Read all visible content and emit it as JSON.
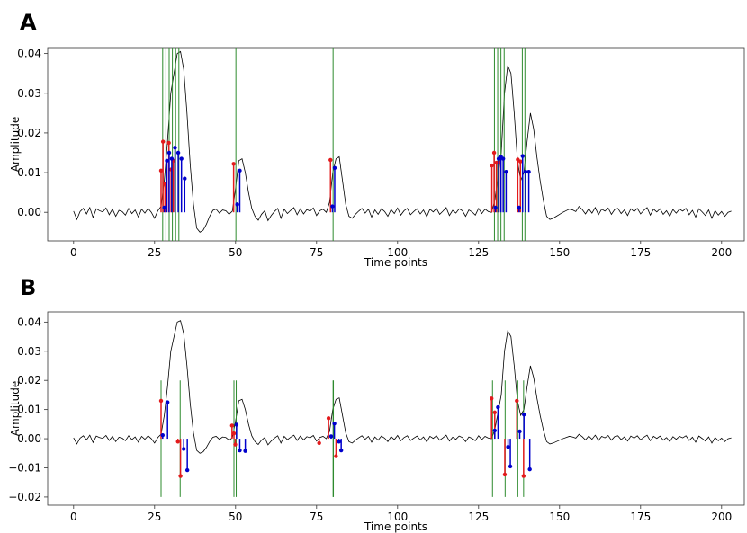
{
  "chart_data": [
    {
      "type": "line",
      "panel_label": "A",
      "xlabel": "Time points",
      "ylabel": "Amplitude",
      "xlim": [
        -8,
        207
      ],
      "ylim": [
        -0.0072,
        0.0415
      ],
      "xticks": [
        0,
        25,
        50,
        75,
        100,
        125,
        150,
        175,
        200
      ],
      "yticks": [
        0.0,
        0.01,
        0.02,
        0.03,
        0.04
      ],
      "ytick_labels": [
        "0.00",
        "0.01",
        "0.02",
        "0.03",
        "0.04"
      ],
      "grid": false,
      "signal_color": "#000000",
      "green_line_color": "#2e8b2e",
      "red_stem_color": "#e31a1c",
      "blue_stem_color": "#0000cc",
      "green_lines": {
        "x": [
          27.5,
          28.5,
          29.5,
          30.5,
          31.5,
          32.5,
          50.1,
          80.1,
          129.9,
          130.9,
          131.9,
          132.9,
          138.5,
          139.3
        ],
        "ymin": -0.0072,
        "ymax": 0.0415
      },
      "red_stems": {
        "x": [
          27.0,
          27.6,
          28.2,
          29.4,
          30.1,
          30.8,
          49.4,
          79.3,
          129.1,
          129.8,
          130.5,
          131.3,
          137.1,
          137.9
        ],
        "y": [
          0.0105,
          0.0178,
          0.0072,
          0.0175,
          0.0108,
          0.013,
          0.0122,
          0.0132,
          0.0118,
          0.015,
          0.0125,
          0.0125,
          0.0133,
          0.0128
        ]
      },
      "blue_stems": {
        "x": [
          28.0,
          28.8,
          29.5,
          30.3,
          31.3,
          32.3,
          33.3,
          34.3,
          50.5,
          51.3,
          79.9,
          80.6,
          130.2,
          131.2,
          131.9,
          132.6,
          133.5,
          137.5,
          138.6,
          139.5,
          140.5
        ],
        "y": [
          0.0012,
          0.013,
          0.015,
          0.0135,
          0.0163,
          0.015,
          0.0135,
          0.0085,
          0.002,
          0.0105,
          0.0015,
          0.0112,
          0.0012,
          0.0135,
          0.014,
          0.0135,
          0.0102,
          0.0012,
          0.0142,
          0.0102,
          0.0102
        ]
      }
    },
    {
      "type": "line",
      "panel_label": "B",
      "xlabel": "Time points",
      "ylabel": "Amplitude",
      "xlim": [
        -8,
        207
      ],
      "ylim": [
        -0.0228,
        0.0435
      ],
      "xticks": [
        0,
        25,
        50,
        75,
        100,
        125,
        150,
        175,
        200
      ],
      "yticks": [
        -0.02,
        -0.01,
        0.0,
        0.01,
        0.02,
        0.03,
        0.04
      ],
      "ytick_labels": [
        "−0.02",
        "−0.01",
        "0.00",
        "0.01",
        "0.02",
        "0.03",
        "0.04"
      ],
      "grid": false,
      "signal_color": "#000000",
      "green_line_color": "#2e8b2e",
      "red_stem_color": "#e31a1c",
      "blue_stem_color": "#0000cc",
      "green_lines": {
        "x": [
          27.0,
          32.9,
          49.5,
          50.2,
          80.1,
          80.2,
          129.3,
          133.2,
          137.1,
          138.9
        ],
        "ymin": -0.02,
        "ymax": 0.02
      },
      "red_stems": {
        "x": [
          27.0,
          32.2,
          33.0,
          48.9,
          49.5,
          49.9,
          75.8,
          78.7,
          81.0,
          129.0,
          130.0,
          133.1,
          136.8,
          138.9
        ],
        "y": [
          0.013,
          -0.001,
          -0.0128,
          0.0045,
          0.0018,
          -0.002,
          -0.0015,
          0.007,
          -0.006,
          0.0138,
          0.009,
          -0.0123,
          0.013,
          -0.0128
        ]
      },
      "blue_stems": {
        "x": [
          27.5,
          29.0,
          34.0,
          35.1,
          50.3,
          51.3,
          53.0,
          79.5,
          80.5,
          81.9,
          82.6,
          130.0,
          131.0,
          134.1,
          134.8,
          137.7,
          139.0,
          140.8
        ],
        "y": [
          0.0012,
          0.0125,
          -0.0035,
          -0.0108,
          0.0048,
          -0.004,
          -0.0042,
          0.0008,
          0.0052,
          -0.001,
          -0.004,
          0.0028,
          0.0108,
          -0.0028,
          -0.0095,
          0.0025,
          0.0083,
          -0.0105
        ]
      }
    }
  ],
  "signal": {
    "description_note": "shared waveform shown in both panels",
    "y": [
      0.0003,
      -0.0018,
      0.0002,
      0.001,
      -0.0004,
      0.0012,
      -0.0013,
      0.0009,
      0.0004,
      0.0001,
      0.0011,
      -0.0006,
      0.0008,
      -0.001,
      0.0005,
      0.0002,
      -0.0007,
      0.001,
      -0.0003,
      0.0006,
      -0.0012,
      0.0008,
      -0.0002,
      0.001,
      0.0,
      -0.0015,
      0.0004,
      0.0015,
      0.008,
      0.018,
      0.03,
      0.035,
      0.04,
      0.0405,
      0.036,
      0.025,
      0.012,
      0.002,
      -0.004,
      -0.005,
      -0.0045,
      -0.003,
      -0.001,
      0.0005,
      0.0008,
      -0.0002,
      0.0006,
      0.0004,
      -0.0005,
      0.0003,
      0.006,
      0.013,
      0.0135,
      0.01,
      0.005,
      0.001,
      -0.001,
      -0.002,
      -0.0005,
      0.0004,
      -0.0021,
      -0.0008,
      0.0002,
      0.001,
      -0.0015,
      0.0008,
      -0.0003,
      0.0005,
      0.0012,
      -0.0006,
      0.0009,
      -0.0004,
      0.0007,
      0.0003,
      0.0011,
      -0.0008,
      0.0004,
      0.0008,
      0.0,
      0.0025,
      0.01,
      0.0135,
      0.014,
      0.008,
      0.002,
      -0.001,
      -0.0015,
      -0.0005,
      0.0003,
      0.001,
      -0.0002,
      0.0008,
      -0.0012,
      0.0006,
      -0.0005,
      0.0009,
      0.0002,
      -0.001,
      0.0007,
      -0.0003,
      0.0011,
      -0.0007,
      0.0004,
      0.001,
      -0.0006,
      0.0002,
      0.0009,
      -0.0004,
      0.0006,
      -0.0011,
      0.0008,
      0.0001,
      0.001,
      -0.0005,
      0.0003,
      0.0012,
      -0.0008,
      0.0005,
      -0.0002,
      0.0009,
      0.0004,
      -0.001,
      0.0006,
      0.0001,
      -0.0007,
      0.001,
      -0.0003,
      0.0008,
      0.0002,
      0.0,
      0.003,
      0.009,
      0.015,
      0.03,
      0.037,
      0.035,
      0.025,
      0.013,
      0.008,
      0.01,
      0.018,
      0.025,
      0.021,
      0.014,
      0.008,
      0.003,
      -0.001,
      -0.0018,
      -0.0015,
      -0.001,
      -0.0005,
      0.0,
      0.0004,
      0.0008,
      0.0006,
      0.0002,
      0.0015,
      0.0007,
      -0.0004,
      0.0009,
      -0.0002,
      0.0012,
      -0.0006,
      0.0008,
      0.0003,
      0.0011,
      -0.0005,
      0.0007,
      0.001,
      -0.0003,
      0.0006,
      -0.0008,
      0.0009,
      0.0002,
      0.001,
      -0.0004,
      0.0005,
      0.0012,
      -0.0007,
      0.0008,
      0.0001,
      0.0009,
      -0.0005,
      0.0004,
      -0.001,
      0.0007,
      -0.0002,
      0.0008,
      0.0003,
      0.001,
      -0.0006,
      0.0005,
      -0.0012,
      0.0009,
      0.0001,
      -0.0008,
      0.0006,
      -0.0015,
      0.0004,
      -0.0007,
      0.0002,
      -0.001,
      0.0,
      0.0003
    ]
  }
}
